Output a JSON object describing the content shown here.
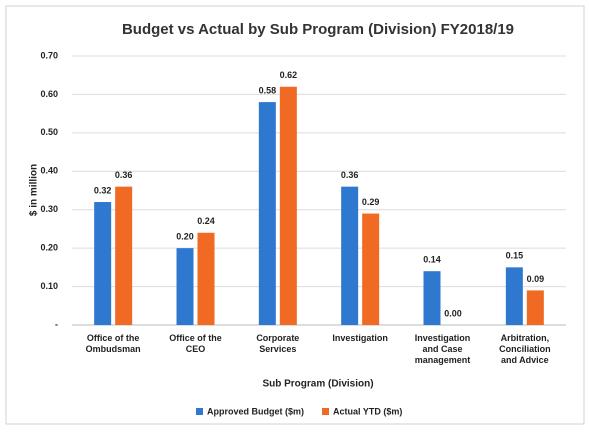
{
  "chart_data": {
    "type": "bar",
    "title": "Budget vs Actual by Sub Program (Division) FY2018/19",
    "x_label": "Sub Program (Division)",
    "y_label": "$ in million",
    "categories": [
      "Office of the Ombudsman",
      "Office of the CEO",
      "Corporate Services",
      "Investigation",
      "Investigation and Case management",
      "Arbitration, Conciliation and Advice"
    ],
    "series": [
      {
        "name": "Approved Budget ($m)",
        "color": "#2f78d0",
        "values": [
          0.32,
          0.2,
          0.58,
          0.36,
          0.14,
          0.15
        ],
        "value_labels": [
          "0.32",
          "0.20",
          "0.58",
          "0.36",
          "0.14",
          "0.15"
        ]
      },
      {
        "name": "Actual YTD ($m)",
        "color": "#f06a23",
        "values": [
          0.36,
          0.24,
          0.62,
          0.29,
          0.0,
          0.09
        ],
        "value_labels": [
          "0.36",
          "0.24",
          "0.62",
          "0.29",
          "0.00",
          "0.09"
        ]
      }
    ],
    "ylim": [
      0,
      0.7
    ],
    "yticks": [
      {
        "value": 0,
        "label": "-"
      },
      {
        "value": 0.1,
        "label": "0.10"
      },
      {
        "value": 0.2,
        "label": "0.20"
      },
      {
        "value": 0.3,
        "label": "0.30"
      },
      {
        "value": 0.4,
        "label": "0.40"
      },
      {
        "value": 0.5,
        "label": "0.50"
      },
      {
        "value": 0.6,
        "label": "0.60"
      },
      {
        "value": 0.7,
        "label": "0.70"
      }
    ],
    "grid": true,
    "legend": "bottom"
  }
}
